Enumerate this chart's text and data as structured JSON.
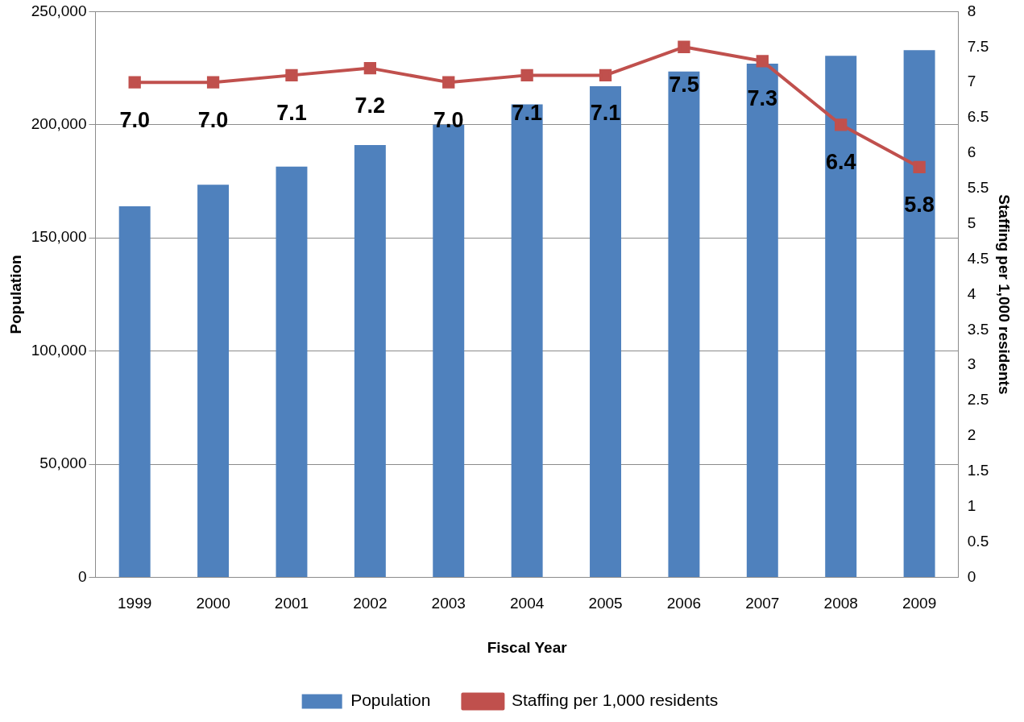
{
  "chart_data": {
    "type": "bar",
    "xlabel": "Fiscal Year",
    "ylabel": "Population",
    "y2label": "Staffing per 1,000 residents",
    "categories": [
      "1999",
      "2000",
      "2001",
      "2002",
      "2003",
      "2004",
      "2005",
      "2006",
      "2007",
      "2008",
      "2009"
    ],
    "series": [
      {
        "name": "Population",
        "color": "#4f81bd",
        "values": [
          164000,
          173500,
          181500,
          191000,
          200000,
          209000,
          217000,
          223500,
          227000,
          230500,
          233000
        ]
      },
      {
        "name": "Staffing per 1,000 residents",
        "type": "line",
        "axis": "y2",
        "color": "#c0504d",
        "marker": "square",
        "values": [
          7.0,
          7.0,
          7.1,
          7.2,
          7.0,
          7.1,
          7.1,
          7.5,
          7.3,
          6.4,
          5.8
        ],
        "value_labels": [
          "7.0",
          "7.0",
          "7.1",
          "7.2",
          "7.0",
          "7.1",
          "7.1",
          "7.5",
          "7.3",
          "6.4",
          "5.8"
        ]
      }
    ],
    "ylim": [
      0,
      250000
    ],
    "yticks": [
      {
        "value": 0,
        "label": "0"
      },
      {
        "value": 50000,
        "label": "50,000"
      },
      {
        "value": 100000,
        "label": "100,000"
      },
      {
        "value": 150000,
        "label": "150,000"
      },
      {
        "value": 200000,
        "label": "200,000"
      },
      {
        "value": 250000,
        "label": "250,000"
      }
    ],
    "y2lim": [
      0,
      8
    ],
    "y2ticks": [
      0,
      0.5,
      1,
      1.5,
      2,
      2.5,
      3,
      3.5,
      4,
      4.5,
      5,
      5.5,
      6,
      6.5,
      7,
      7.5,
      8
    ],
    "grid": "y",
    "legend": "bottom"
  }
}
